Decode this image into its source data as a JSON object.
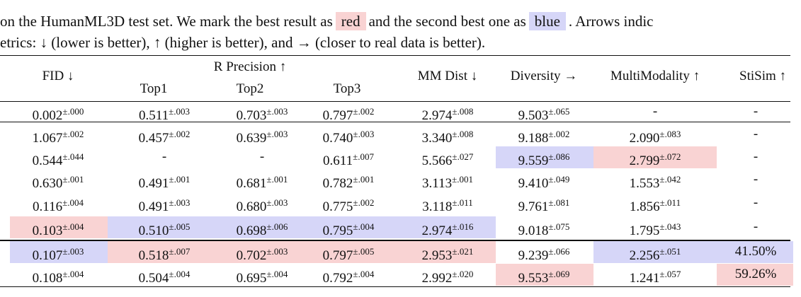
{
  "caption": {
    "line1": {
      "before": "on the HumanML3D test set. We mark the best result as",
      "red": "red",
      "middle": "and the second best one as",
      "blue": "blue",
      "after": ". Arrows indic"
    },
    "line2": "etrics: ↓ (lower is better), ↑ (higher is better), and → (closer to real data is better)."
  },
  "highlight_colors": {
    "red": "#f9d3d3",
    "blue": "#d6d6f8"
  },
  "table": {
    "group_header": "R Precision ↑",
    "columns": [
      "FID ↓",
      "Top1",
      "Top2",
      "Top3",
      "MM Dist ↓",
      "Diversity →",
      "MultiModality ↑",
      "StiSim ↑"
    ],
    "rows": [
      [
        {
          "v": "0.002",
          "pm": "±.000"
        },
        {
          "v": "0.511",
          "pm": "±.003"
        },
        {
          "v": "0.703",
          "pm": "±.003"
        },
        {
          "v": "0.797",
          "pm": "±.002"
        },
        {
          "v": "2.974",
          "pm": "±.008"
        },
        {
          "v": "9.503",
          "pm": "±.065"
        },
        {
          "v": "-"
        },
        {
          "v": "-"
        }
      ],
      [
        {
          "v": "1.067",
          "pm": "±.002"
        },
        {
          "v": "0.457",
          "pm": "±.002"
        },
        {
          "v": "0.639",
          "pm": "±.003"
        },
        {
          "v": "0.740",
          "pm": "±.003"
        },
        {
          "v": "3.340",
          "pm": "±.008"
        },
        {
          "v": "9.188",
          "pm": "±.002"
        },
        {
          "v": "2.090",
          "pm": "±.083"
        },
        {
          "v": "-"
        }
      ],
      [
        {
          "v": "0.544",
          "pm": "±.044"
        },
        {
          "v": "-"
        },
        {
          "v": "-"
        },
        {
          "v": "0.611",
          "pm": "±.007"
        },
        {
          "v": "5.566",
          "pm": "±.027"
        },
        {
          "v": "9.559",
          "pm": "±.086",
          "hl": "blue"
        },
        {
          "v": "2.799",
          "pm": "±.072",
          "hl": "red"
        },
        {
          "v": "-"
        }
      ],
      [
        {
          "v": "0.630",
          "pm": "±.001"
        },
        {
          "v": "0.491",
          "pm": "±.001"
        },
        {
          "v": "0.681",
          "pm": "±.001"
        },
        {
          "v": "0.782",
          "pm": "±.001"
        },
        {
          "v": "3.113",
          "pm": "±.001"
        },
        {
          "v": "9.410",
          "pm": "±.049"
        },
        {
          "v": "1.553",
          "pm": "±.042"
        },
        {
          "v": "-"
        }
      ],
      [
        {
          "v": "0.116",
          "pm": "±.004"
        },
        {
          "v": "0.491",
          "pm": "±.003"
        },
        {
          "v": "0.680",
          "pm": "±.003"
        },
        {
          "v": "0.775",
          "pm": "±.002"
        },
        {
          "v": "3.118",
          "pm": "±.011"
        },
        {
          "v": "9.761",
          "pm": "±.081"
        },
        {
          "v": "1.856",
          "pm": "±.011"
        },
        {
          "v": "-"
        }
      ],
      [
        {
          "v": "0.103",
          "pm": "±.004",
          "hl": "red"
        },
        {
          "v": "0.510",
          "pm": "±.005",
          "hl": "blue"
        },
        {
          "v": "0.698",
          "pm": "±.006",
          "hl": "blue"
        },
        {
          "v": "0.795",
          "pm": "±.004",
          "hl": "blue"
        },
        {
          "v": "2.974",
          "pm": "±.016",
          "hl": "blue"
        },
        {
          "v": "9.018",
          "pm": "±.075"
        },
        {
          "v": "1.795",
          "pm": "±.043"
        },
        {
          "v": "-"
        }
      ],
      [
        {
          "v": "0.107",
          "pm": "±.003",
          "hl": "blue"
        },
        {
          "v": "0.518",
          "pm": "±.007",
          "hl": "red"
        },
        {
          "v": "0.702",
          "pm": "±.003",
          "hl": "red"
        },
        {
          "v": "0.797",
          "pm": "±.005",
          "hl": "red"
        },
        {
          "v": "2.953",
          "pm": "±.021",
          "hl": "red"
        },
        {
          "v": "9.239",
          "pm": "±.066"
        },
        {
          "v": "2.256",
          "pm": "±.051",
          "hl": "blue"
        },
        {
          "v": "41.50%",
          "hl": "blue"
        }
      ],
      [
        {
          "v": "0.108",
          "pm": "±.004"
        },
        {
          "v": "0.504",
          "pm": "±.004"
        },
        {
          "v": "0.695",
          "pm": "±.004"
        },
        {
          "v": "0.792",
          "pm": "±.004"
        },
        {
          "v": "2.992",
          "pm": "±.020"
        },
        {
          "v": "9.553",
          "pm": "±.069",
          "hl": "red"
        },
        {
          "v": "1.241",
          "pm": "±.057"
        },
        {
          "v": "59.26%",
          "hl": "red"
        }
      ]
    ]
  }
}
